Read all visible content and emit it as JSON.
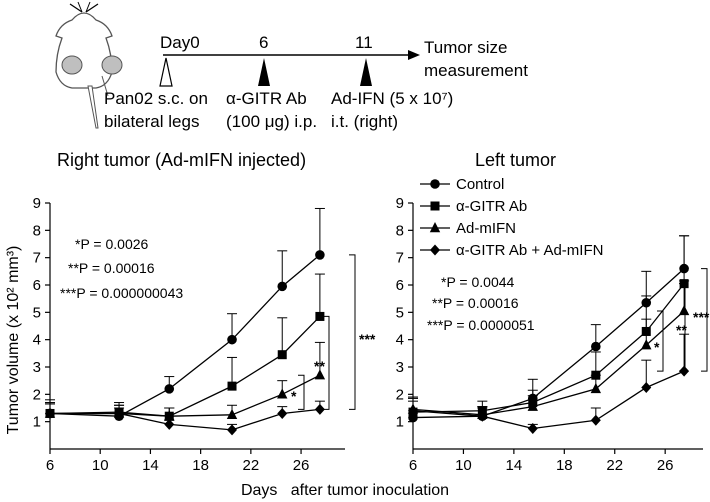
{
  "timeline": {
    "markers": [
      {
        "day": "Day0",
        "caption": [
          "Pan02 s.c. on",
          "bilateral legs"
        ],
        "marker": "open-triangle"
      },
      {
        "day": "6",
        "caption": [
          "α-GITR Ab",
          "(100 μg) i.p."
        ],
        "marker": "filled-triangle"
      },
      {
        "day": "11",
        "caption": [
          "Ad-IFN (5 x 10⁷)",
          "i.t. (right)"
        ],
        "marker": "filled-triangle"
      }
    ],
    "end_label": [
      "Tumor size",
      "measurement"
    ]
  },
  "y_axis_label": "Tumor volume (x 10² mm³)",
  "x_axis_label": "Days   after tumor inoculation",
  "legend": [
    "Control",
    "α-GITR Ab",
    "Ad-mIFN",
    "α-GITR Ab + Ad-mIFN"
  ],
  "chart_data": [
    {
      "type": "line",
      "title": "Right tumor (Ad-mIFN injected)",
      "x_ticks": [
        "6",
        "10",
        "14",
        "18",
        "22",
        "26"
      ],
      "y_ticks": [
        "1",
        "2",
        "3",
        "4",
        "5",
        "6",
        "7",
        "8",
        "9"
      ],
      "xlim": [
        6,
        29.5
      ],
      "ylim": [
        0,
        9
      ],
      "x": [
        6,
        11.5,
        15.5,
        20.5,
        24.5,
        27.5
      ],
      "series": [
        {
          "name": "Control",
          "marker": "circle",
          "values": [
            1.3,
            1.2,
            2.2,
            4.0,
            5.95,
            7.1
          ],
          "error": [
            0.5,
            0.3,
            0.45,
            0.95,
            1.3,
            1.7
          ]
        },
        {
          "name": "α-GITR Ab",
          "marker": "square",
          "values": [
            1.3,
            1.35,
            1.2,
            2.3,
            3.45,
            4.85
          ],
          "error": [
            0.4,
            0.35,
            0.3,
            1.05,
            1.35,
            1.55
          ]
        },
        {
          "name": "Ad-mIFN",
          "marker": "triangle",
          "values": [
            1.3,
            1.3,
            1.2,
            1.25,
            2.0,
            2.7
          ],
          "error": [
            0.35,
            0.3,
            0.3,
            0.35,
            0.5,
            1.2
          ]
        },
        {
          "name": "α-GITR Ab + Ad-mIFN",
          "marker": "diamond",
          "values": [
            1.3,
            1.3,
            0.9,
            0.7,
            1.3,
            1.45
          ],
          "error": [
            0.35,
            0.3,
            0.15,
            0.2,
            0.25,
            0.3
          ]
        }
      ],
      "p_values": [
        "*P = 0.0026",
        "**P = 0.00016",
        "***P = 0.000000043"
      ],
      "brackets": [
        {
          "label": "*",
          "from": 1.45,
          "to": 2.7
        },
        {
          "label": "**",
          "from": 1.45,
          "to": 4.85
        },
        {
          "label": "***",
          "from": 1.45,
          "to": 7.1
        }
      ]
    },
    {
      "type": "line",
      "title": "Left tumor",
      "x_ticks": [
        "6",
        "10",
        "14",
        "18",
        "22",
        "26"
      ],
      "y_ticks": [
        "1",
        "2",
        "3",
        "4",
        "5",
        "6",
        "7",
        "8",
        "9"
      ],
      "xlim": [
        6,
        29
      ],
      "ylim": [
        0,
        9
      ],
      "x": [
        6,
        11.5,
        15.5,
        20.5,
        24.5,
        27.5
      ],
      "series": [
        {
          "name": "Control",
          "marker": "circle",
          "values": [
            1.15,
            1.2,
            1.85,
            3.75,
            5.35,
            6.6
          ],
          "error": [
            0.6,
            0.35,
            0.7,
            0.8,
            1.15,
            1.2
          ]
        },
        {
          "name": "α-GITR Ab",
          "marker": "square",
          "values": [
            1.35,
            1.4,
            1.7,
            2.7,
            4.3,
            6.05
          ],
          "error": [
            0.55,
            0.35,
            0.45,
            0.85,
            1.3,
            1.75
          ]
        },
        {
          "name": "Ad-mIFN",
          "marker": "triangle",
          "values": [
            1.45,
            1.25,
            1.55,
            2.2,
            3.8,
            5.05
          ],
          "error": [
            0.45,
            0.3,
            0.4,
            0.5,
            0.95,
            1.1
          ]
        },
        {
          "name": "α-GITR Ab + Ad-mIFN",
          "marker": "diamond",
          "values": [
            1.4,
            1.2,
            0.75,
            1.05,
            2.25,
            2.85
          ],
          "error": [
            0.45,
            0.3,
            0.15,
            0.45,
            1.0,
            1.35
          ]
        }
      ],
      "p_values": [
        "*P = 0.0044",
        "**P = 0.00016",
        "***P = 0.0000051"
      ],
      "brackets": [
        {
          "label": "*",
          "from": 2.85,
          "to": 5.05
        },
        {
          "label": "**",
          "from": 2.85,
          "to": 6.05
        },
        {
          "label": "***",
          "from": 2.85,
          "to": 6.6
        }
      ]
    }
  ]
}
